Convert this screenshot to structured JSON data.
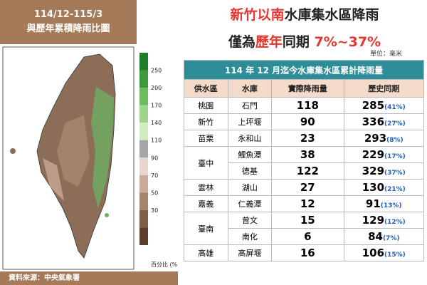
{
  "map_panel": {
    "header_line1": "114/12-115/3",
    "header_line2": "與歷年累積降雨比圖",
    "colorbar_labels": [
      "250",
      "200",
      "170",
      "140",
      "110",
      "90",
      "70",
      "50",
      "30"
    ],
    "colorbar_unit": "百分比 (%)",
    "source": "資料來源：中央氣象署"
  },
  "headline": {
    "line1_red": "新竹以南",
    "line1_rest": "水庫集水區降雨",
    "line2_a": "僅為",
    "line2_red": "歷年",
    "line2_b": "同期",
    "line2_range": "7%~37%"
  },
  "unit": "單位：毫米",
  "table": {
    "title": "114 年 12 月迄今水庫集水區累計降雨量",
    "columns": [
      "供水區",
      "水庫",
      "實際降雨量",
      "歷史同期"
    ],
    "groups": [
      {
        "region": "桃園",
        "rows": [
          {
            "reservoir": "石門",
            "rain": "118",
            "history": "285",
            "percent": "(41%)"
          }
        ]
      },
      {
        "region": "新竹",
        "rows": [
          {
            "reservoir": "上坪堰",
            "rain": "90",
            "history": "336",
            "percent": "(27%)"
          }
        ]
      },
      {
        "region": "苗栗",
        "rows": [
          {
            "reservoir": "永和山",
            "rain": "23",
            "history": "293",
            "percent": "(8%)"
          }
        ]
      },
      {
        "region": "臺中",
        "rows": [
          {
            "reservoir": "鯉魚潭",
            "rain": "38",
            "history": "229",
            "percent": "(17%)"
          },
          {
            "reservoir": "德基",
            "rain": "122",
            "history": "329",
            "percent": "(37%)"
          }
        ]
      },
      {
        "region": "雲林",
        "rows": [
          {
            "reservoir": "湖山",
            "rain": "27",
            "history": "130",
            "percent": "(21%)"
          }
        ]
      },
      {
        "region": "嘉義",
        "rows": [
          {
            "reservoir": "仁義潭",
            "rain": "12",
            "history": "91",
            "percent": "(13%)"
          }
        ]
      },
      {
        "region": "臺南",
        "rows": [
          {
            "reservoir": "曾文",
            "rain": "15",
            "history": "129",
            "percent": "(12%)"
          },
          {
            "reservoir": "南化",
            "rain": "6",
            "history": "84",
            "percent": "(7%)"
          }
        ]
      },
      {
        "region": "高雄",
        "rows": [
          {
            "reservoir": "高屏堰",
            "rain": "16",
            "history": "106",
            "percent": "(15%)"
          }
        ]
      }
    ]
  }
}
